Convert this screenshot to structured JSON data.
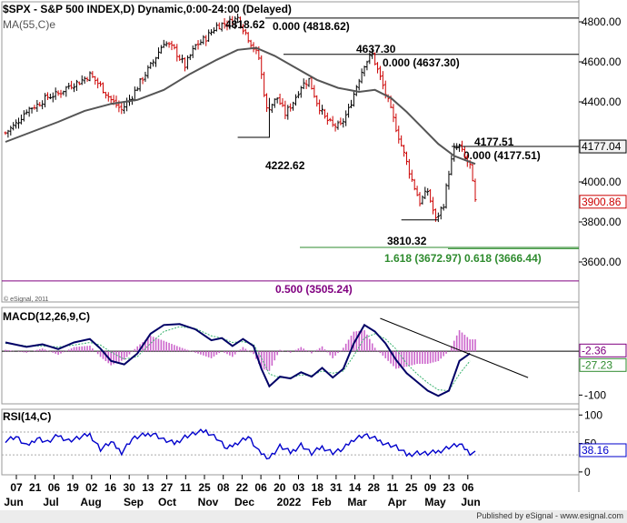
{
  "chart_data": [
    {
      "type": "ohlc",
      "title": "$SPX - S&P 500 INDEX,D) Dynamic,0:00-24:00 (Delayed)",
      "overlay_label": "MA(55,C)e",
      "credit": "© eSignal, 2011",
      "ylim": [
        3400,
        4900
      ],
      "y_ticks": [
        {
          "value": 4800,
          "label": "4800.00"
        },
        {
          "value": 4600,
          "label": "4600.00"
        },
        {
          "value": 4400,
          "label": "4400.00"
        },
        {
          "value": 4000,
          "label": "4000.00"
        },
        {
          "value": 3800,
          "label": "3800.00"
        },
        {
          "value": 3600,
          "label": "3600.00"
        }
      ],
      "price_tags": [
        {
          "value": 4177.04,
          "label": "4177.04",
          "color": "#000000"
        },
        {
          "value": 3900.86,
          "label": "3900.86",
          "color": "#cc0000"
        }
      ],
      "hlines": [
        {
          "value": 4818.62,
          "label": "0.000 (4818.62)",
          "color": "#000000"
        },
        {
          "value": 4637.3,
          "label": "0.000 (4637.30)",
          "color": "#000000"
        },
        {
          "value": 4177.51,
          "label": "0.000 (4177.51)",
          "color": "#000000"
        },
        {
          "value": 3672.97,
          "label": "1.618 (3672.97)",
          "color": "#2e8b2e"
        },
        {
          "value": 3666.44,
          "label": "0.618 (3666.44)",
          "color": "#2e8b2e"
        },
        {
          "value": 3505.24,
          "label": "0.500 (3505.24)",
          "color": "#800080"
        }
      ],
      "pivot_labels": [
        {
          "value": 4818.62,
          "label": "4818.62"
        },
        {
          "value": 4637.3,
          "label": "4637.30"
        },
        {
          "value": 4222.62,
          "label": "4222.62"
        },
        {
          "value": 4177.51,
          "label": "4177.51"
        },
        {
          "value": 3810.32,
          "label": "3810.32"
        }
      ],
      "price_path": [
        [
          0,
          4245
        ],
        [
          4,
          4290
        ],
        [
          8,
          4360
        ],
        [
          12,
          4385
        ],
        [
          16,
          4425
        ],
        [
          20,
          4440
        ],
        [
          24,
          4480
        ],
        [
          28,
          4500
        ],
        [
          32,
          4535
        ],
        [
          36,
          4480
        ],
        [
          40,
          4410
        ],
        [
          44,
          4360
        ],
        [
          48,
          4430
        ],
        [
          52,
          4520
        ],
        [
          56,
          4600
        ],
        [
          60,
          4700
        ],
        [
          64,
          4660
        ],
        [
          68,
          4580
        ],
        [
          72,
          4680
        ],
        [
          76,
          4720
        ],
        [
          80,
          4780
        ],
        [
          84,
          4795
        ],
        [
          88,
          4818.62
        ],
        [
          92,
          4720
        ],
        [
          96,
          4620
        ],
        [
          99,
          4360
        ],
        [
          103,
          4420
        ],
        [
          106,
          4340
        ],
        [
          109,
          4400
        ],
        [
          112,
          4480
        ],
        [
          115,
          4510
        ],
        [
          118,
          4400
        ],
        [
          121,
          4320
        ],
        [
          124,
          4280
        ],
        [
          127,
          4280
        ],
        [
          130,
          4360
        ],
        [
          133,
          4480
        ],
        [
          136,
          4590
        ],
        [
          139,
          4637.3
        ],
        [
          142,
          4520
        ],
        [
          145,
          4400
        ],
        [
          148,
          4270
        ],
        [
          151,
          4140
        ],
        [
          154,
          4010
        ],
        [
          157,
          3900
        ],
        [
          160,
          3955
        ],
        [
          163,
          3810.32
        ],
        [
          166,
          3890
        ],
        [
          168,
          4050
        ],
        [
          170,
          4160
        ],
        [
          172,
          4177.51
        ],
        [
          174,
          4120
        ],
        [
          176,
          4080
        ],
        [
          178,
          3900.86
        ]
      ],
      "ma_path": [
        [
          0,
          4200
        ],
        [
          10,
          4250
        ],
        [
          20,
          4300
        ],
        [
          30,
          4355
        ],
        [
          40,
          4390
        ],
        [
          50,
          4410
        ],
        [
          60,
          4460
        ],
        [
          70,
          4540
        ],
        [
          80,
          4610
        ],
        [
          88,
          4660
        ],
        [
          95,
          4670
        ],
        [
          102,
          4630
        ],
        [
          110,
          4570
        ],
        [
          118,
          4510
        ],
        [
          126,
          4470
        ],
        [
          134,
          4450
        ],
        [
          140,
          4460
        ],
        [
          146,
          4420
        ],
        [
          152,
          4350
        ],
        [
          158,
          4270
        ],
        [
          164,
          4190
        ],
        [
          170,
          4130
        ],
        [
          178,
          4090
        ]
      ]
    },
    {
      "type": "line",
      "title": "MACD(12,26,9,C)",
      "ylim": [
        -120,
        100
      ],
      "y_ticks": [
        {
          "value": -100,
          "label": "-100"
        }
      ],
      "price_tags": [
        {
          "value": -2.36,
          "label": "-2.36",
          "color": "#800080"
        },
        {
          "value": -27.23,
          "label": "-27.23",
          "color": "#2e8b2e"
        }
      ],
      "macd_path": [
        [
          0,
          20
        ],
        [
          8,
          10
        ],
        [
          14,
          16
        ],
        [
          20,
          5
        ],
        [
          26,
          20
        ],
        [
          32,
          28
        ],
        [
          36,
          6
        ],
        [
          40,
          -22
        ],
        [
          45,
          -30
        ],
        [
          50,
          -5
        ],
        [
          55,
          40
        ],
        [
          60,
          60
        ],
        [
          66,
          62
        ],
        [
          72,
          50
        ],
        [
          78,
          25
        ],
        [
          82,
          30
        ],
        [
          86,
          12
        ],
        [
          90,
          28
        ],
        [
          94,
          12
        ],
        [
          97,
          -40
        ],
        [
          100,
          -80
        ],
        [
          104,
          -58
        ],
        [
          108,
          -62
        ],
        [
          112,
          -48
        ],
        [
          116,
          -58
        ],
        [
          120,
          -38
        ],
        [
          124,
          -60
        ],
        [
          128,
          -40
        ],
        [
          132,
          18
        ],
        [
          136,
          60
        ],
        [
          140,
          45
        ],
        [
          144,
          18
        ],
        [
          148,
          -20
        ],
        [
          152,
          -50
        ],
        [
          156,
          -70
        ],
        [
          160,
          -90
        ],
        [
          164,
          -102
        ],
        [
          168,
          -90
        ],
        [
          172,
          -22
        ],
        [
          176,
          -5
        ]
      ],
      "signal_path": [
        [
          0,
          18
        ],
        [
          8,
          12
        ],
        [
          14,
          12
        ],
        [
          20,
          10
        ],
        [
          26,
          14
        ],
        [
          32,
          20
        ],
        [
          36,
          14
        ],
        [
          40,
          -2
        ],
        [
          45,
          -18
        ],
        [
          50,
          -12
        ],
        [
          55,
          18
        ],
        [
          60,
          45
        ],
        [
          66,
          56
        ],
        [
          72,
          52
        ],
        [
          78,
          35
        ],
        [
          82,
          30
        ],
        [
          86,
          20
        ],
        [
          90,
          22
        ],
        [
          94,
          16
        ],
        [
          97,
          -15
        ],
        [
          100,
          -52
        ],
        [
          104,
          -60
        ],
        [
          108,
          -60
        ],
        [
          112,
          -54
        ],
        [
          116,
          -55
        ],
        [
          120,
          -45
        ],
        [
          124,
          -50
        ],
        [
          128,
          -45
        ],
        [
          132,
          -10
        ],
        [
          136,
          30
        ],
        [
          140,
          40
        ],
        [
          144,
          28
        ],
        [
          148,
          5
        ],
        [
          152,
          -28
        ],
        [
          156,
          -52
        ],
        [
          160,
          -72
        ],
        [
          164,
          -88
        ],
        [
          168,
          -90
        ],
        [
          172,
          -52
        ],
        [
          176,
          -22
        ]
      ],
      "trendline": [
        [
          142,
          75
        ],
        [
          198,
          -60
        ]
      ]
    },
    {
      "type": "line",
      "title": "RSI(14,C)",
      "ylim": [
        -5,
        110
      ],
      "y_ticks": [
        {
          "value": 100,
          "label": "100"
        },
        {
          "value": 50,
          "label": "50"
        },
        {
          "value": 0,
          "label": "0"
        }
      ],
      "price_tags": [
        {
          "value": 38.16,
          "label": "38.16",
          "color": "#0000cc"
        }
      ],
      "rsi_path": [
        [
          0,
          56
        ],
        [
          4,
          62
        ],
        [
          8,
          45
        ],
        [
          12,
          60
        ],
        [
          16,
          52
        ],
        [
          20,
          64
        ],
        [
          24,
          55
        ],
        [
          28,
          60
        ],
        [
          32,
          66
        ],
        [
          36,
          40
        ],
        [
          40,
          52
        ],
        [
          44,
          35
        ],
        [
          48,
          58
        ],
        [
          52,
          64
        ],
        [
          56,
          68
        ],
        [
          60,
          56
        ],
        [
          64,
          50
        ],
        [
          68,
          62
        ],
        [
          72,
          68
        ],
        [
          76,
          72
        ],
        [
          80,
          60
        ],
        [
          84,
          40
        ],
        [
          88,
          52
        ],
        [
          92,
          62
        ],
        [
          96,
          35
        ],
        [
          100,
          25
        ],
        [
          104,
          45
        ],
        [
          108,
          34
        ],
        [
          112,
          48
        ],
        [
          116,
          32
        ],
        [
          120,
          44
        ],
        [
          124,
          34
        ],
        [
          128,
          40
        ],
        [
          132,
          58
        ],
        [
          136,
          65
        ],
        [
          140,
          58
        ],
        [
          144,
          50
        ],
        [
          148,
          44
        ],
        [
          152,
          30
        ],
        [
          156,
          34
        ],
        [
          160,
          32
        ],
        [
          164,
          36
        ],
        [
          168,
          44
        ],
        [
          172,
          48
        ],
        [
          176,
          34
        ]
      ]
    }
  ],
  "x_axis": {
    "days": [
      "07",
      "21",
      "06",
      "19",
      "02",
      "16",
      "30",
      "13",
      "27",
      "11",
      "25",
      "08",
      "22",
      "06",
      "20",
      "03",
      "18",
      "31",
      "14",
      "28",
      "11",
      "25",
      "09",
      "23",
      "06"
    ],
    "months": [
      {
        "label": "Jun",
        "index": 0
      },
      {
        "label": "Jul",
        "index": 2
      },
      {
        "label": "Aug",
        "index": 4
      },
      {
        "label": "Sep",
        "index": 6
      },
      {
        "label": "Oct",
        "index": 8
      },
      {
        "label": "Nov",
        "index": 10
      },
      {
        "label": "Dec",
        "index": 13
      },
      {
        "label": "2022",
        "index": 16
      },
      {
        "label": "Feb",
        "index": 18
      },
      {
        "label": "Mar",
        "index": 20
      },
      {
        "label": "Apr",
        "index": 22
      },
      {
        "label": "May",
        "index": 24
      },
      {
        "label": "Jun",
        "index": 26
      }
    ]
  },
  "footer": "Published by eSignal - www.esignal.com",
  "colors": {
    "up": "#000000",
    "down": "#cc0000",
    "ma": "#555555",
    "macd": "#000066",
    "signal": "#3cb371",
    "histogram": "#cc66cc",
    "rsi": "#0000cc"
  }
}
